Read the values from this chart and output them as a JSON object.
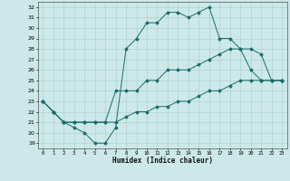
{
  "xlabel": "Humidex (Indice chaleur)",
  "ylabel": "",
  "xlim": [
    -0.5,
    23.5
  ],
  "ylim": [
    18.5,
    32.5
  ],
  "yticks": [
    19,
    20,
    21,
    22,
    23,
    24,
    25,
    26,
    27,
    28,
    29,
    30,
    31,
    32
  ],
  "xticks": [
    0,
    1,
    2,
    3,
    4,
    5,
    6,
    7,
    8,
    9,
    10,
    11,
    12,
    13,
    14,
    15,
    16,
    17,
    18,
    19,
    20,
    21,
    22,
    23
  ],
  "bg_color": "#cce8e8",
  "line_color": "#1a6b6b",
  "grid_color": "#aacccc",
  "line1_x": [
    0,
    1,
    2,
    3,
    4,
    5,
    6,
    7,
    8,
    9,
    10,
    11,
    12,
    13,
    14,
    15,
    16,
    17,
    18,
    19,
    20,
    21,
    22,
    23
  ],
  "line1_y": [
    23,
    22,
    21,
    20.5,
    20,
    19,
    19,
    20.5,
    28,
    29,
    30.5,
    30.5,
    31.5,
    31.5,
    31,
    31.5,
    32,
    29,
    29,
    28,
    26,
    25,
    25,
    25
  ],
  "line2_x": [
    0,
    1,
    2,
    3,
    4,
    5,
    6,
    7,
    8,
    9,
    10,
    11,
    12,
    13,
    14,
    15,
    16,
    17,
    18,
    19,
    20,
    21,
    22,
    23
  ],
  "line2_y": [
    23,
    22,
    21,
    21,
    21,
    21,
    21,
    24,
    24,
    24,
    25,
    25,
    26,
    26,
    26,
    26.5,
    27,
    27.5,
    28,
    28,
    28,
    27.5,
    25,
    25
  ],
  "line3_x": [
    0,
    1,
    2,
    3,
    4,
    5,
    6,
    7,
    8,
    9,
    10,
    11,
    12,
    13,
    14,
    15,
    16,
    17,
    18,
    19,
    20,
    21,
    22,
    23
  ],
  "line3_y": [
    23,
    22,
    21,
    21,
    21,
    21,
    21,
    21,
    21.5,
    22,
    22,
    22.5,
    22.5,
    23,
    23,
    23.5,
    24,
    24,
    24.5,
    25,
    25,
    25,
    25,
    25
  ]
}
